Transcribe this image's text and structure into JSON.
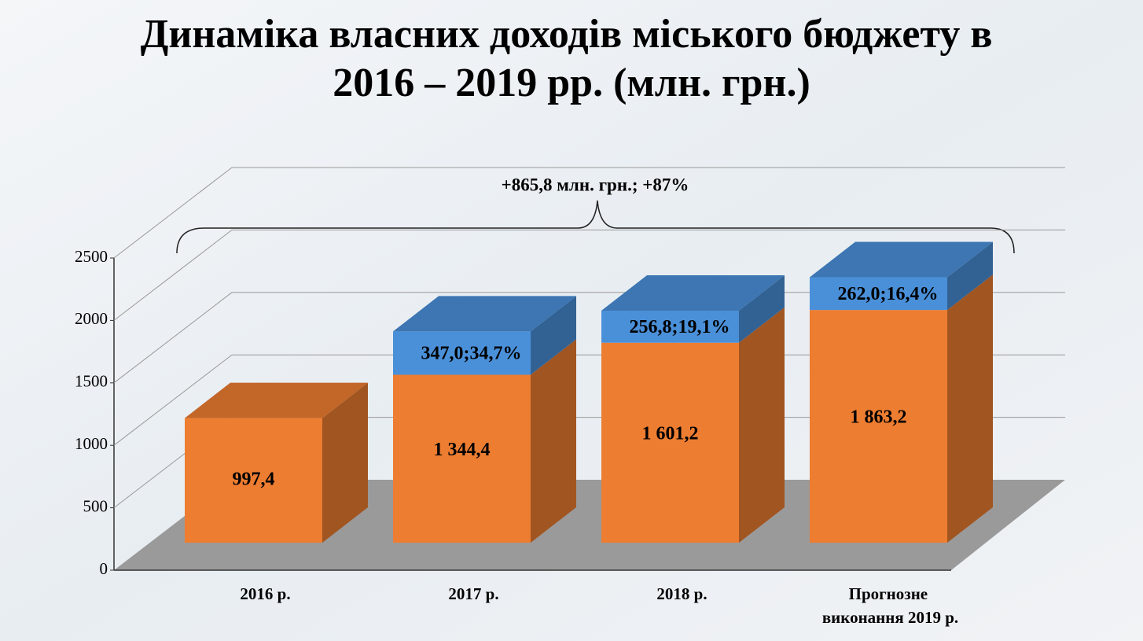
{
  "chart_data": {
    "type": "bar3d_stacked",
    "title": "Динаміка власних доходів міського бюджету в 2016 – 2019 рр. (млн. грн.)",
    "annotation": "+865,8 млн. грн.; +87%",
    "categories": [
      "2016 р.",
      "2017 р.",
      "2018 р.",
      "Прогнозне виконання 2019 р."
    ],
    "series": [
      {
        "color": "#ed7d31",
        "values": [
          997.4,
          1344.4,
          1601.2,
          1863.2
        ],
        "value_labels": [
          "997,4",
          "1 344,4",
          "1 601,2",
          "1 863,2"
        ]
      },
      {
        "color": "#4a90d9",
        "values": [
          null,
          347.0,
          256.8,
          262.0
        ],
        "value_labels": [
          null,
          "347,0;34,7%",
          "256,8;19,1%",
          "262,0;16,4%"
        ]
      }
    ],
    "ylim": [
      0,
      2500
    ],
    "yticks": [
      0,
      500,
      1000,
      1500,
      2000,
      2500
    ],
    "grid": true
  }
}
